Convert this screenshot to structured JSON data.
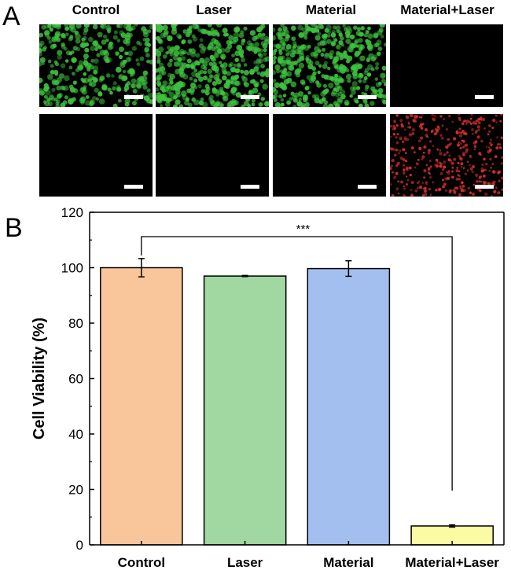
{
  "figure": {
    "panel_a_letter": "A",
    "panel_b_letter": "B",
    "columns": [
      "Control",
      "Laser",
      "Material",
      "Material+Laser"
    ],
    "image_rows": [
      {
        "stain": "live",
        "color": "#3fc23f",
        "intensity": [
          1,
          1,
          1,
          0
        ]
      },
      {
        "stain": "dead",
        "color": "#e03030",
        "intensity": [
          0,
          0,
          0,
          1
        ]
      }
    ]
  },
  "chart_data": {
    "type": "bar",
    "categories": [
      "Control",
      "Laser",
      "Material",
      "Material+Laser"
    ],
    "values": [
      100.0,
      97.0,
      99.7,
      6.8
    ],
    "errors": [
      3.3,
      0.2,
      2.8,
      0.4
    ],
    "colors": [
      "#f9c69b",
      "#a1d7a1",
      "#a3bff0",
      "#fbfba3"
    ],
    "ylabel": "Cell Viability (%)",
    "xlabel": "",
    "ylim": [
      0,
      120
    ],
    "yticks": [
      0,
      20,
      40,
      60,
      80,
      100,
      120
    ],
    "significance": {
      "from": "Control",
      "to": "Material+Laser",
      "label": "***"
    }
  }
}
